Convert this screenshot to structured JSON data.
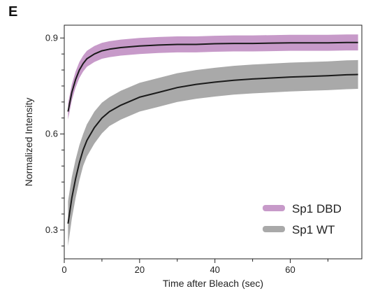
{
  "panel_label": "E",
  "chart_data": {
    "type": "line",
    "title": "",
    "xlabel": "Time after Bleach (sec)",
    "ylabel": "Normalized Intensity",
    "xlim": [
      0,
      79
    ],
    "ylim": [
      0.21,
      0.94
    ],
    "xticks": [
      0,
      20,
      40,
      60
    ],
    "yticks": [
      0.3,
      0.6,
      0.9
    ],
    "grid": false,
    "legend_position": "bottom-right",
    "series": [
      {
        "name": "Sp1 DBD",
        "line_color": "#1a1a1a",
        "band_color": "#c79ac9",
        "x": [
          1,
          2,
          3,
          4,
          5,
          6,
          8,
          10,
          12,
          15,
          20,
          25,
          30,
          35,
          40,
          45,
          50,
          55,
          60,
          65,
          70,
          75,
          78
        ],
        "y": [
          0.67,
          0.73,
          0.77,
          0.8,
          0.82,
          0.835,
          0.85,
          0.86,
          0.865,
          0.87,
          0.875,
          0.878,
          0.88,
          0.88,
          0.882,
          0.883,
          0.883,
          0.884,
          0.885,
          0.885,
          0.885,
          0.886,
          0.886
        ],
        "band_halfwidth": [
          0.025,
          0.025,
          0.025,
          0.025,
          0.025,
          0.025,
          0.025,
          0.025,
          0.025,
          0.025,
          0.025,
          0.025,
          0.025,
          0.025,
          0.025,
          0.025,
          0.025,
          0.025,
          0.025,
          0.025,
          0.025,
          0.025,
          0.025
        ]
      },
      {
        "name": "Sp1 WT",
        "line_color": "#1a1a1a",
        "band_color": "#a9a9a9",
        "x": [
          1,
          2,
          3,
          4,
          5,
          6,
          8,
          10,
          12,
          15,
          20,
          25,
          30,
          35,
          40,
          45,
          50,
          55,
          60,
          65,
          70,
          75,
          78
        ],
        "y": [
          0.32,
          0.4,
          0.46,
          0.51,
          0.55,
          0.58,
          0.62,
          0.65,
          0.67,
          0.69,
          0.715,
          0.73,
          0.745,
          0.755,
          0.762,
          0.768,
          0.772,
          0.775,
          0.778,
          0.78,
          0.782,
          0.785,
          0.786
        ],
        "band_halfwidth": [
          0.07,
          0.065,
          0.06,
          0.055,
          0.05,
          0.05,
          0.05,
          0.048,
          0.045,
          0.045,
          0.045,
          0.045,
          0.045,
          0.045,
          0.045,
          0.045,
          0.045,
          0.045,
          0.045,
          0.045,
          0.045,
          0.045,
          0.045
        ]
      }
    ]
  }
}
